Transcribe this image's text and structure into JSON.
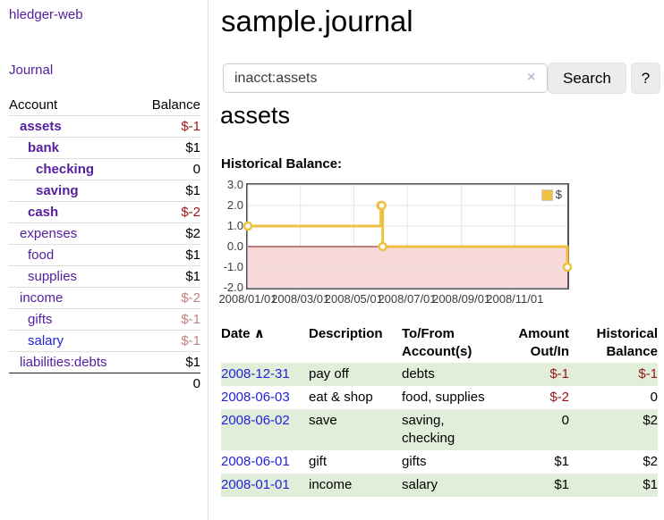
{
  "sidebar": {
    "brand": "hledger-web",
    "nav": [
      {
        "label": "Journal"
      }
    ],
    "accounts_table": {
      "headers": [
        "Account",
        "Balance"
      ],
      "rows": [
        {
          "name": "assets",
          "level": 1,
          "bold": true,
          "link_style": "purple",
          "balance": "$-1",
          "balance_style": "neg-strong"
        },
        {
          "name": "bank",
          "level": 2,
          "bold": true,
          "link_style": "purple",
          "balance": "$1",
          "balance_style": "plain"
        },
        {
          "name": "checking",
          "level": 3,
          "bold": true,
          "link_style": "purple",
          "balance": "0",
          "balance_style": "plain"
        },
        {
          "name": "saving",
          "level": 3,
          "bold": true,
          "link_style": "purple",
          "balance": "$1",
          "balance_style": "plain"
        },
        {
          "name": "cash",
          "level": 2,
          "bold": true,
          "link_style": "purple",
          "balance": "$-2",
          "balance_style": "neg-strong"
        },
        {
          "name": "expenses",
          "level": 1,
          "bold": false,
          "link_style": "purple",
          "balance": "$2",
          "balance_style": "plain"
        },
        {
          "name": "food",
          "level": 2,
          "bold": false,
          "link_style": "purple",
          "balance": "$1",
          "balance_style": "plain"
        },
        {
          "name": "supplies",
          "level": 2,
          "bold": false,
          "link_style": "purple",
          "balance": "$1",
          "balance_style": "plain"
        },
        {
          "name": "income",
          "level": 1,
          "bold": false,
          "link_style": "purple",
          "balance": "$-2",
          "balance_style": "neg-soft"
        },
        {
          "name": "gifts",
          "level": 2,
          "bold": false,
          "link_style": "purple",
          "balance": "$-1",
          "balance_style": "neg-soft"
        },
        {
          "name": "salary",
          "level": 2,
          "bold": false,
          "link_style": "blue",
          "balance": "$-1",
          "balance_style": "neg-soft"
        },
        {
          "name": "liabilities:debts",
          "level": 1,
          "bold": false,
          "link_style": "purple",
          "balance": "$1",
          "balance_style": "plain"
        }
      ],
      "total": "0"
    }
  },
  "header": {
    "title": "sample.journal"
  },
  "search": {
    "value": "inacct:assets",
    "clear_icon": "×",
    "button": "Search",
    "help_button": "?"
  },
  "account_page": {
    "heading": "assets",
    "chart_label": "Historical Balance:"
  },
  "chart_data": {
    "type": "line",
    "title": "Historical Balance of assets",
    "step": true,
    "series": [
      {
        "name": "$",
        "color": "#edc240",
        "points": [
          [
            "2008-01-01",
            1
          ],
          [
            "2008-06-01",
            2
          ],
          [
            "2008-06-02",
            2
          ],
          [
            "2008-06-03",
            0
          ],
          [
            "2008-12-31",
            -1
          ]
        ]
      }
    ],
    "x_domain_days": [
      0,
      365
    ],
    "ylim": [
      -2,
      3
    ],
    "y_ticks": [
      {
        "value": 3,
        "label": "3.0"
      },
      {
        "value": 2,
        "label": "2.0"
      },
      {
        "value": 1,
        "label": "1.0"
      },
      {
        "value": 0,
        "label": "0.0"
      },
      {
        "value": -1,
        "label": "-1.0"
      },
      {
        "value": -2,
        "label": "-2.0"
      }
    ],
    "x_ticks": [
      {
        "day": 0,
        "label": "2008/01/01"
      },
      {
        "day": 60,
        "label": "2008/03/01"
      },
      {
        "day": 121,
        "label": "2008/05/01"
      },
      {
        "day": 182,
        "label": "2008/07/01"
      },
      {
        "day": 244,
        "label": "2008/09/01"
      },
      {
        "day": 305,
        "label": "2008/11/01"
      }
    ],
    "path_days": [
      [
        0,
        1
      ],
      [
        152,
        1
      ],
      [
        152,
        2
      ],
      [
        154,
        2
      ],
      [
        154,
        0
      ],
      [
        365,
        0
      ],
      [
        365,
        -1
      ]
    ],
    "marker_days": [
      [
        0,
        1
      ],
      [
        152,
        2
      ],
      [
        153,
        2
      ],
      [
        154,
        0
      ],
      [
        365,
        -1
      ]
    ],
    "legend_position": "top-right",
    "grid": true,
    "colors": {
      "line": "#edc240",
      "negative_region_fill": "#f8d8d8",
      "zero_line": "#7e1010",
      "grid": "#e4e4e4",
      "border": "#545454"
    }
  },
  "register_table": {
    "columns": [
      {
        "label": "Date",
        "sort_icon": "∧"
      },
      {
        "label": "Description"
      },
      {
        "label": "To/From\nAccount(s)"
      },
      {
        "label": "Amount\nOut/In",
        "align": "right"
      },
      {
        "label": "Historical\nBalance",
        "align": "right"
      }
    ],
    "rows": [
      {
        "date": "2008-12-31",
        "description": "pay off",
        "accounts": "debts",
        "amount": "$-1",
        "amount_style": "neg-strong",
        "balance": "$-1",
        "balance_style": "neg-strong"
      },
      {
        "date": "2008-06-03",
        "description": "eat & shop",
        "accounts": "food, supplies",
        "amount": "$-2",
        "amount_style": "neg-strong",
        "balance": "0",
        "balance_style": "plain"
      },
      {
        "date": "2008-06-02",
        "description": "save",
        "accounts": "saving, checking",
        "amount": "0",
        "amount_style": "plain",
        "balance": "$2",
        "balance_style": "plain"
      },
      {
        "date": "2008-06-01",
        "description": "gift",
        "accounts": "gifts",
        "amount": "$1",
        "amount_style": "plain",
        "balance": "$2",
        "balance_style": "plain"
      },
      {
        "date": "2008-01-01",
        "description": "income",
        "accounts": "salary",
        "amount": "$1",
        "amount_style": "plain",
        "balance": "$1",
        "balance_style": "plain"
      }
    ]
  }
}
